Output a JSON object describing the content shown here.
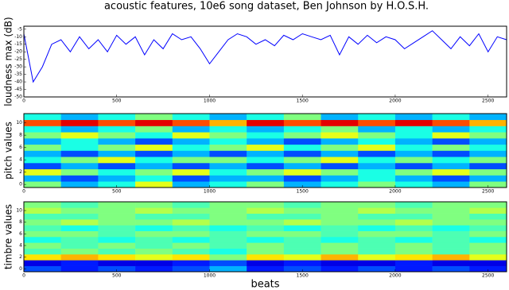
{
  "chart_data": [
    {
      "type": "line",
      "title": "acoustic features, 10e6 song dataset, Ben Johnson by H.O.S.H.",
      "ylabel": "loudness max (dB)",
      "color": "#0000ff",
      "x": [
        0,
        50,
        100,
        150,
        200,
        250,
        300,
        350,
        400,
        450,
        500,
        550,
        600,
        650,
        700,
        750,
        800,
        850,
        900,
        950,
        1000,
        1050,
        1100,
        1150,
        1200,
        1250,
        1300,
        1350,
        1400,
        1450,
        1500,
        1550,
        1600,
        1650,
        1700,
        1750,
        1800,
        1850,
        1900,
        1950,
        2000,
        2050,
        2100,
        2150,
        2200,
        2250,
        2300,
        2350,
        2400,
        2450,
        2500,
        2550,
        2600
      ],
      "values": [
        -8,
        -40,
        -30,
        -15,
        -12,
        -20,
        -10,
        -18,
        -12,
        -20,
        -9,
        -15,
        -10,
        -22,
        -12,
        -18,
        -8,
        -12,
        -10,
        -18,
        -28,
        -20,
        -12,
        -8,
        -10,
        -15,
        -12,
        -16,
        -9,
        -12,
        -8,
        -10,
        -12,
        -9,
        -22,
        -10,
        -15,
        -9,
        -14,
        -10,
        -12,
        -18,
        -14,
        -10,
        -6,
        -12,
        -18,
        -10,
        -16,
        -8,
        -20,
        -10,
        -12
      ],
      "xlim": [
        0,
        2600
      ],
      "xticks": [
        0,
        500,
        1000,
        1500,
        2000,
        2500
      ],
      "ylim": [
        -50,
        -3
      ],
      "yticks": [
        -5,
        -10,
        -15,
        -20,
        -25,
        -30,
        -35,
        -40,
        -45,
        -50
      ]
    },
    {
      "type": "heatmap",
      "ylabel": "pitch values",
      "colormap": "jet",
      "clim": [
        0,
        1
      ],
      "xbins": [
        0,
        200,
        400,
        600,
        800,
        1000,
        1200,
        1400,
        1600,
        1800,
        2000,
        2200,
        2400,
        2600
      ],
      "z": [
        [
          0.5,
          0.3,
          0.4,
          0.6,
          0.3,
          0.4,
          0.5,
          0.3,
          0.4,
          0.5,
          0.4,
          0.3,
          0.5
        ],
        [
          0.3,
          0.2,
          0.3,
          0.4,
          0.2,
          0.3,
          0.3,
          0.2,
          0.3,
          0.4,
          0.3,
          0.2,
          0.3
        ],
        [
          0.6,
          0.5,
          0.4,
          0.5,
          0.6,
          0.4,
          0.5,
          0.6,
          0.5,
          0.4,
          0.5,
          0.6,
          0.5
        ],
        [
          0.2,
          0.3,
          0.2,
          0.3,
          0.2,
          0.3,
          0.2,
          0.3,
          0.2,
          0.3,
          0.2,
          0.3,
          0.2
        ],
        [
          0.4,
          0.5,
          0.6,
          0.4,
          0.5,
          0.5,
          0.4,
          0.5,
          0.6,
          0.4,
          0.5,
          0.4,
          0.5
        ],
        [
          0.3,
          0.2,
          0.3,
          0.2,
          0.3,
          0.2,
          0.3,
          0.2,
          0.3,
          0.2,
          0.3,
          0.2,
          0.3
        ],
        [
          0.5,
          0.4,
          0.5,
          0.6,
          0.4,
          0.5,
          0.6,
          0.4,
          0.5,
          0.6,
          0.4,
          0.5,
          0.4
        ],
        [
          0.3,
          0.4,
          0.3,
          0.2,
          0.3,
          0.4,
          0.3,
          0.2,
          0.3,
          0.4,
          0.3,
          0.2,
          0.3
        ],
        [
          0.5,
          0.6,
          0.5,
          0.4,
          0.6,
          0.5,
          0.4,
          0.5,
          0.6,
          0.5,
          0.4,
          0.6,
          0.5
        ],
        [
          0.4,
          0.3,
          0.4,
          0.5,
          0.3,
          0.4,
          0.3,
          0.4,
          0.5,
          0.3,
          0.4,
          0.3,
          0.4
        ],
        [
          0.8,
          0.9,
          0.8,
          0.9,
          0.8,
          0.7,
          0.9,
          0.8,
          0.9,
          0.8,
          0.9,
          0.8,
          0.7
        ],
        [
          0.4,
          0.3,
          0.4,
          0.5,
          0.4,
          0.3,
          0.4,
          0.5,
          0.3,
          0.4,
          0.3,
          0.4,
          0.3
        ]
      ],
      "xlim": [
        0,
        2600
      ],
      "xticks": [
        0,
        500,
        1000,
        1500,
        2000,
        2500
      ],
      "ylim": [
        -0.5,
        11.5
      ],
      "yticks": [
        0,
        2,
        4,
        6,
        8,
        10
      ]
    },
    {
      "type": "heatmap",
      "ylabel": "timbre values",
      "xlabel": "beats",
      "colormap": "jet",
      "clim": [
        0,
        1
      ],
      "xbins": [
        0,
        200,
        400,
        600,
        800,
        1000,
        1200,
        1400,
        1600,
        1800,
        2000,
        2200,
        2400,
        2600
      ],
      "z": [
        [
          0.2,
          0.15,
          0.2,
          0.15,
          0.2,
          0.3,
          0.15,
          0.2,
          0.15,
          0.2,
          0.15,
          0.2,
          0.15
        ],
        [
          0.1,
          0.15,
          0.1,
          0.1,
          0.15,
          0.2,
          0.1,
          0.15,
          0.1,
          0.1,
          0.15,
          0.1,
          0.1
        ],
        [
          0.65,
          0.7,
          0.65,
          0.6,
          0.65,
          0.5,
          0.65,
          0.6,
          0.7,
          0.6,
          0.65,
          0.7,
          0.6
        ],
        [
          0.45,
          0.5,
          0.45,
          0.5,
          0.45,
          0.4,
          0.5,
          0.45,
          0.5,
          0.45,
          0.5,
          0.45,
          0.5
        ],
        [
          0.5,
          0.45,
          0.5,
          0.45,
          0.5,
          0.45,
          0.5,
          0.45,
          0.5,
          0.45,
          0.5,
          0.45,
          0.5
        ],
        [
          0.4,
          0.45,
          0.4,
          0.45,
          0.4,
          0.45,
          0.4,
          0.45,
          0.4,
          0.45,
          0.4,
          0.45,
          0.4
        ],
        [
          0.5,
          0.5,
          0.45,
          0.5,
          0.5,
          0.45,
          0.5,
          0.5,
          0.45,
          0.5,
          0.5,
          0.45,
          0.5
        ],
        [
          0.45,
          0.4,
          0.45,
          0.4,
          0.45,
          0.4,
          0.45,
          0.4,
          0.45,
          0.4,
          0.45,
          0.4,
          0.45
        ],
        [
          0.5,
          0.55,
          0.5,
          0.5,
          0.55,
          0.5,
          0.5,
          0.55,
          0.5,
          0.5,
          0.55,
          0.5,
          0.5
        ],
        [
          0.45,
          0.45,
          0.5,
          0.45,
          0.45,
          0.5,
          0.45,
          0.45,
          0.5,
          0.45,
          0.45,
          0.5,
          0.45
        ],
        [
          0.55,
          0.5,
          0.5,
          0.55,
          0.5,
          0.5,
          0.55,
          0.5,
          0.5,
          0.55,
          0.5,
          0.5,
          0.55
        ],
        [
          0.5,
          0.45,
          0.5,
          0.5,
          0.45,
          0.5,
          0.5,
          0.45,
          0.5,
          0.5,
          0.45,
          0.5,
          0.5
        ]
      ],
      "xlim": [
        0,
        2600
      ],
      "xticks": [
        0,
        500,
        1000,
        1500,
        2000,
        2500
      ],
      "ylim": [
        -0.5,
        11.5
      ],
      "yticks": [
        0,
        2,
        4,
        6,
        8,
        10
      ]
    }
  ]
}
